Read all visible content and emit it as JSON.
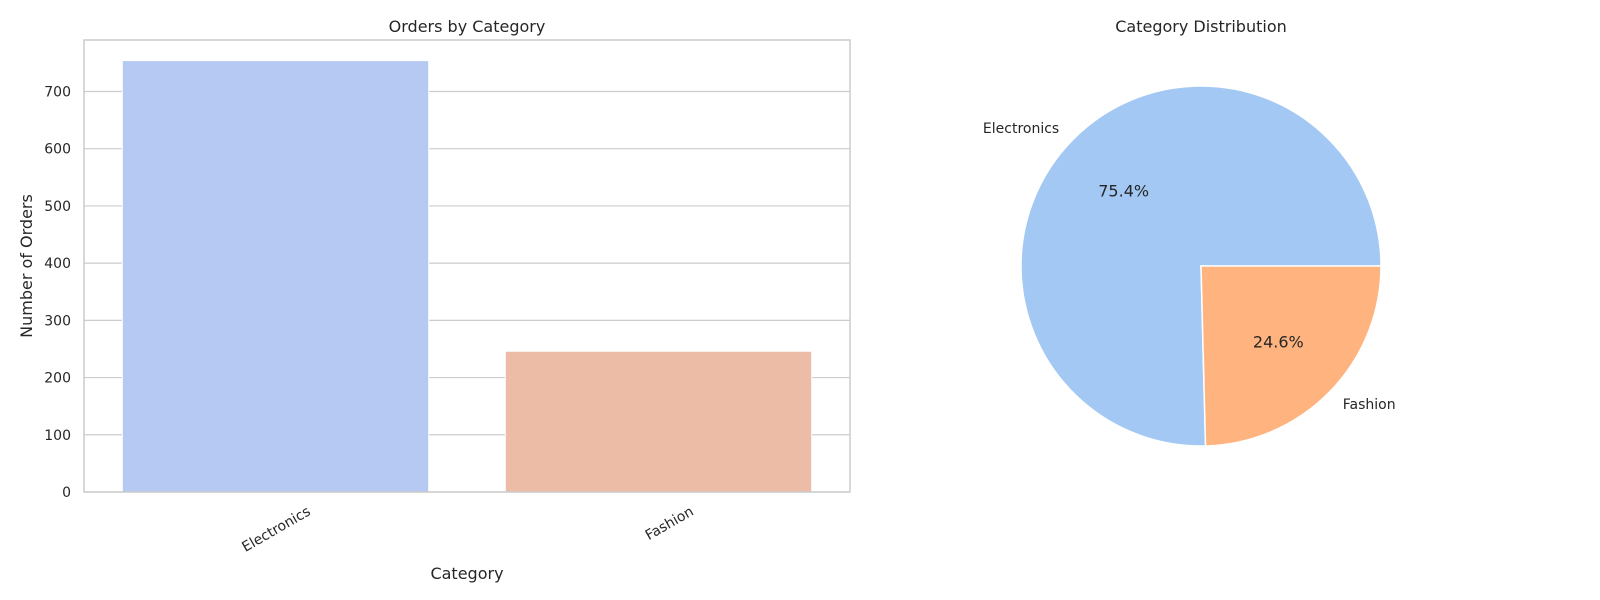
{
  "chart_data": [
    {
      "type": "bar",
      "title": "Orders by Category",
      "xlabel": "Category",
      "ylabel": "Number of Orders",
      "categories": [
        "Electronics",
        "Fashion"
      ],
      "values": [
        754,
        246
      ],
      "ylim": [
        0,
        790
      ],
      "yticks": [
        0,
        100,
        200,
        300,
        400,
        500,
        600,
        700
      ],
      "ytick_labels": [
        "0",
        "100",
        "200",
        "300",
        "400",
        "500",
        "600",
        "700"
      ],
      "colors": [
        "#b5c9f3",
        "#ecbca6"
      ],
      "grid": true
    },
    {
      "type": "pie",
      "title": "Category Distribution",
      "labels": [
        "Electronics",
        "Fashion"
      ],
      "values": [
        75.4,
        24.6
      ],
      "pct_labels": [
        "75.4%",
        "24.6%"
      ],
      "colors": [
        "#a3c8f4",
        "#ffb47f"
      ]
    }
  ]
}
